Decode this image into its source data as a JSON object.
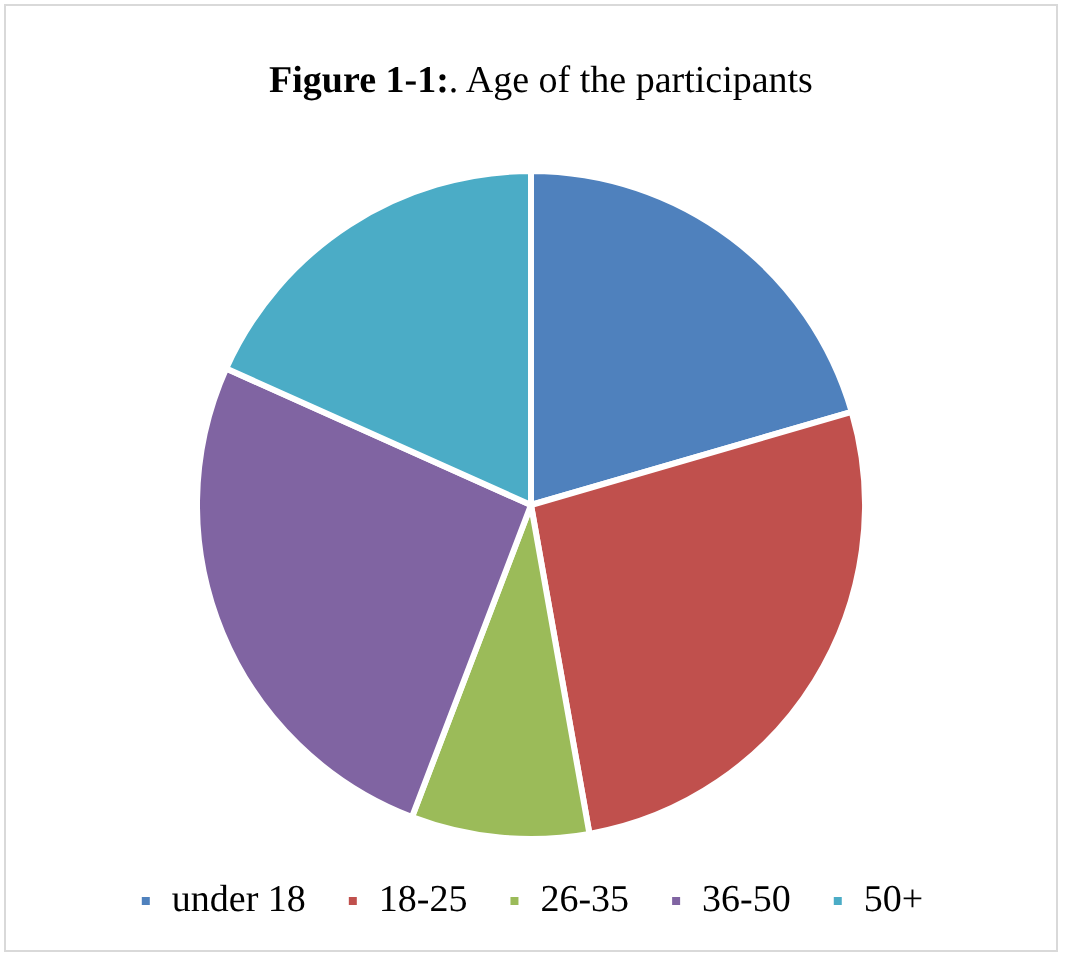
{
  "chart_data": {
    "type": "pie",
    "title": "Figure 1-1:. Age of the participants",
    "categories": [
      "under 18",
      "18-25",
      "26-35",
      "36-50",
      "50+"
    ],
    "values": [
      20.5,
      26.7,
      8.6,
      25.9,
      18.3
    ],
    "colors": [
      "#4f81bd",
      "#c0504d",
      "#9bbb59",
      "#8064a2",
      "#4bacc6"
    ],
    "legend": "bottom"
  }
}
